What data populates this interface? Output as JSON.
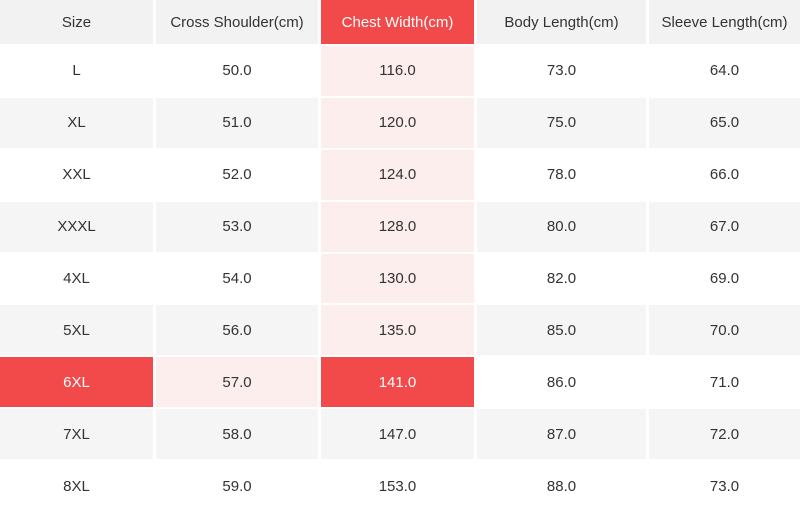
{
  "size_chart": {
    "columns": [
      {
        "id": "size",
        "label": "Size"
      },
      {
        "id": "cross_shoulder",
        "label": "Cross Shoulder(cm)"
      },
      {
        "id": "chest_width",
        "label": "Chest Width(cm)",
        "highlighted": true
      },
      {
        "id": "body_length",
        "label": "Body Length(cm)"
      },
      {
        "id": "sleeve_length",
        "label": "Sleeve Length(cm)"
      }
    ],
    "rows": [
      {
        "size": "L",
        "cross_shoulder": "50.0",
        "chest_width": "116.0",
        "body_length": "73.0",
        "sleeve_length": "64.0"
      },
      {
        "size": "XL",
        "cross_shoulder": "51.0",
        "chest_width": "120.0",
        "body_length": "75.0",
        "sleeve_length": "65.0"
      },
      {
        "size": "XXL",
        "cross_shoulder": "52.0",
        "chest_width": "124.0",
        "body_length": "78.0",
        "sleeve_length": "66.0"
      },
      {
        "size": "XXXL",
        "cross_shoulder": "53.0",
        "chest_width": "128.0",
        "body_length": "80.0",
        "sleeve_length": "67.0"
      },
      {
        "size": "4XL",
        "cross_shoulder": "54.0",
        "chest_width": "130.0",
        "body_length": "82.0",
        "sleeve_length": "69.0"
      },
      {
        "size": "5XL",
        "cross_shoulder": "56.0",
        "chest_width": "135.0",
        "body_length": "85.0",
        "sleeve_length": "70.0"
      },
      {
        "size": "6XL",
        "cross_shoulder": "57.0",
        "chest_width": "141.0",
        "body_length": "86.0",
        "sleeve_length": "71.0"
      },
      {
        "size": "7XL",
        "cross_shoulder": "58.0",
        "chest_width": "147.0",
        "body_length": "87.0",
        "sleeve_length": "72.0"
      },
      {
        "size": "8XL",
        "cross_shoulder": "59.0",
        "chest_width": "153.0",
        "body_length": "88.0",
        "sleeve_length": "73.0"
      }
    ],
    "selection": {
      "row": "6XL",
      "column": "Chest Width(cm)",
      "selected_value": "141.0"
    },
    "colors": {
      "accent_red": "#f2494a",
      "trail_pink": "#fbeeed",
      "row_gray": "#f5f5f5",
      "header_gray": "#f2f2f2",
      "text": "#333333",
      "selected_text": "#ffffff"
    }
  }
}
